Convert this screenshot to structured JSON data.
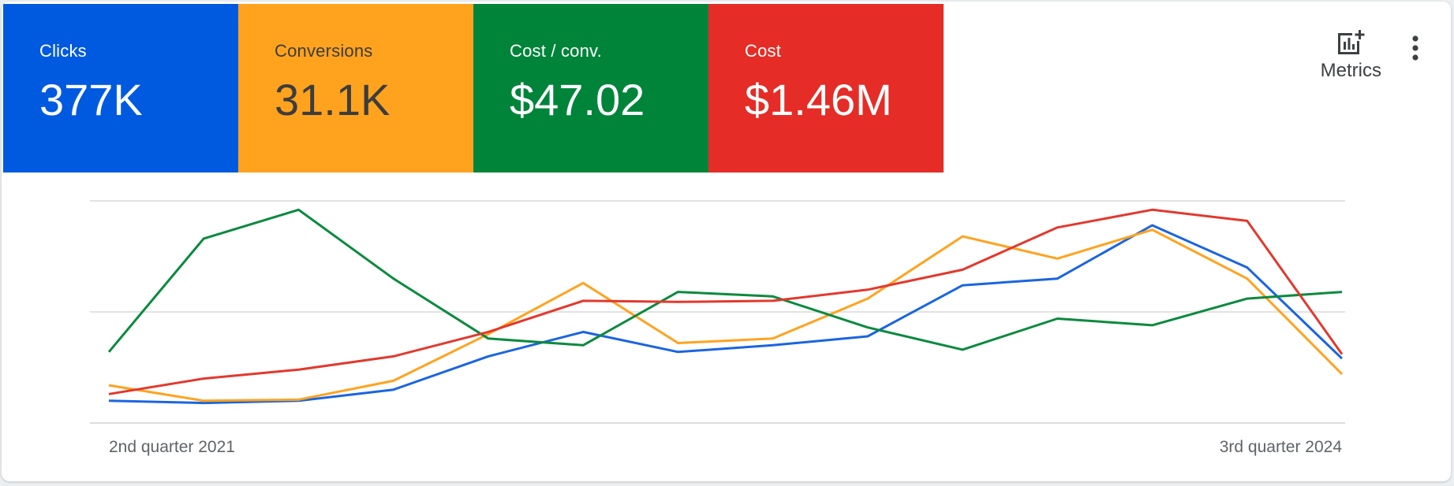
{
  "scorecards": [
    {
      "label": "Clicks",
      "value": "377K",
      "bg": "#005ae0",
      "fg": "#ffffff"
    },
    {
      "label": "Conversions",
      "value": "31.1K",
      "bg": "#ffa31f",
      "fg": "#3c3c3c"
    },
    {
      "label": "Cost / conv.",
      "value": "$47.02",
      "bg": "#00843a",
      "fg": "#ffffff"
    },
    {
      "label": "Cost",
      "value": "$1.46M",
      "bg": "#e52c26",
      "fg": "#ffffff"
    }
  ],
  "toolbar": {
    "metrics_label": "Metrics",
    "metrics_icon": "add-chart-icon",
    "more_icon": "more-vert-icon"
  },
  "chart_data": {
    "type": "line",
    "x_tick_labels": [
      "2nd quarter 2021",
      "3rd quarter 2024"
    ],
    "y_range_normalized": [
      0,
      1
    ],
    "grid": true,
    "series": [
      {
        "metric": "Clicks",
        "color": "#1a65e0",
        "values": [
          0.1,
          0.09,
          0.1,
          0.15,
          0.3,
          0.41,
          0.32,
          0.35,
          0.39,
          0.62,
          0.65,
          0.89,
          0.7,
          0.29
        ]
      },
      {
        "metric": "Conversions",
        "color": "#ffa31f",
        "values": [
          0.17,
          0.1,
          0.105,
          0.19,
          0.4,
          0.63,
          0.36,
          0.38,
          0.56,
          0.84,
          0.74,
          0.87,
          0.65,
          0.22
        ]
      },
      {
        "metric": "Cost / conv.",
        "color": "#0b8a3e",
        "values": [
          0.32,
          0.83,
          0.96,
          0.65,
          0.38,
          0.35,
          0.59,
          0.57,
          0.43,
          0.33,
          0.47,
          0.44,
          0.56,
          0.59
        ]
      },
      {
        "metric": "Cost",
        "color": "#e2392d",
        "values": [
          0.13,
          0.2,
          0.24,
          0.3,
          0.41,
          0.55,
          0.545,
          0.55,
          0.6,
          0.69,
          0.88,
          0.96,
          0.91,
          0.31
        ]
      }
    ]
  }
}
